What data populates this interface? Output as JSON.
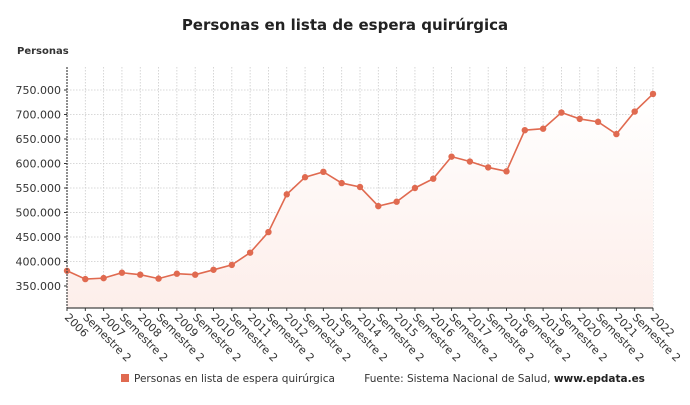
{
  "chart_data": {
    "type": "area",
    "title": "Personas en lista de espera quirúrgica",
    "ylabel": "Personas",
    "xlabel": "",
    "categories": [
      "2006",
      "Semestre 2",
      "2007",
      "Semestre 2",
      "2008",
      "Semestre 2",
      "2009",
      "Semestre 2",
      "2010",
      "Semestre 2",
      "2011",
      "Semestre 2",
      "2012",
      "Semestre 2",
      "2013",
      "Semestre 2",
      "2014",
      "Semestre 2",
      "2015",
      "Semestre 2",
      "2016",
      "Semestre 2",
      "2017",
      "Semestre 2",
      "2018",
      "Semestre 2",
      "2019",
      "Semestre 2",
      "2020",
      "Semestre 2",
      "2021",
      "Semestre 2",
      "2022"
    ],
    "series": [
      {
        "name": "Personas en lista de espera quirúrgica",
        "values": [
          381000,
          364000,
          366000,
          377000,
          373000,
          365000,
          375000,
          373000,
          383000,
          393000,
          418000,
          460000,
          537000,
          572000,
          583000,
          560000,
          552000,
          513000,
          522000,
          550000,
          569000,
          614000,
          604000,
          592000,
          584000,
          668000,
          671000,
          704000,
          691000,
          685000,
          660000,
          706000,
          742000
        ]
      }
    ],
    "yticks": [
      350000,
      400000,
      450000,
      500000,
      550000,
      600000,
      650000,
      700000,
      750000
    ],
    "ytick_labels": [
      "350.000",
      "400.000",
      "450.000",
      "500.000",
      "550.000",
      "600.000",
      "650.000",
      "700.000",
      "750.000"
    ],
    "ylim": [
      305000,
      797000
    ],
    "grid": true,
    "legend_position": "bottom",
    "colors": {
      "line": "#e06a50",
      "fill": "#fdeeea",
      "grid": "#cccccc"
    }
  },
  "source": {
    "prefix": "Fuente: Sistema Nacional de Salud, ",
    "site": "www.epdata.es"
  }
}
